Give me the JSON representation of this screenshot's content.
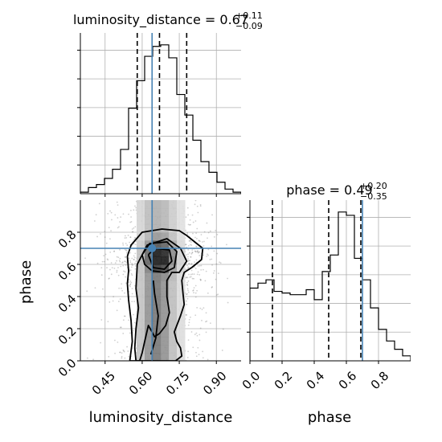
{
  "colors": {
    "truth": "#4682b4",
    "hist": "#000000",
    "grid": "#b0b0b0",
    "quantile": "#000000",
    "scatter": "#777777",
    "density_dark": "#000000"
  },
  "chart_data": [
    {
      "type": "histogram",
      "panel": "top-left",
      "parameter": "luminosity_distance",
      "title": {
        "main": "luminosity_distance = 0.67",
        "sup": "+0.11",
        "sub": "−0.09"
      },
      "xlim": [
        0.35,
        1.0
      ],
      "bin_edges": [
        0.35,
        0.3825,
        0.415,
        0.4475,
        0.48,
        0.5125,
        0.545,
        0.5775,
        0.61,
        0.6425,
        0.675,
        0.7075,
        0.74,
        0.7725,
        0.805,
        0.8375,
        0.87,
        0.9025,
        0.935,
        0.9675,
        1.0
      ],
      "counts": [
        2,
        8,
        12,
        20,
        32,
        58,
        112,
        148,
        180,
        193,
        195,
        178,
        130,
        103,
        70,
        42,
        28,
        15,
        6,
        2
      ],
      "quantiles": [
        0.58,
        0.67,
        0.78
      ],
      "truth": 0.64,
      "grid": true
    },
    {
      "type": "scatter+contour",
      "panel": "bottom-left",
      "xlabel": "luminosity_distance",
      "ylabel": "phase",
      "xlim": [
        0.35,
        1.0
      ],
      "ylim": [
        0.0,
        1.0
      ],
      "xticks": [
        "0.45",
        "0.60",
        "0.75",
        "0.90"
      ],
      "xtick_values": [
        0.45,
        0.6,
        0.75,
        0.9
      ],
      "yticks": [
        "0.0",
        "0.2",
        "0.4",
        "0.6",
        "0.8"
      ],
      "ytick_values": [
        0.0,
        0.2,
        0.4,
        0.6,
        0.8
      ],
      "truth": {
        "x": 0.64,
        "y": 0.7
      },
      "contours": [
        {
          "level": "outer",
          "x": [
            0.55,
            0.56,
            0.555,
            0.545,
            0.54,
            0.545,
            0.54,
            0.555,
            0.6,
            0.68,
            0.75,
            0.78,
            0.845,
            0.84,
            0.8,
            0.77,
            0.76,
            0.765,
            0.77,
            0.755,
            0.74,
            0.73,
            0.74,
            0.755,
            0.76,
            0.735,
            0.705,
            0.66,
            0.55
          ],
          "y": [
            0.0,
            0.12,
            0.25,
            0.38,
            0.48,
            0.56,
            0.65,
            0.72,
            0.8,
            0.82,
            0.81,
            0.78,
            0.7,
            0.63,
            0.58,
            0.55,
            0.5,
            0.42,
            0.35,
            0.28,
            0.22,
            0.18,
            0.12,
            0.08,
            0.03,
            0.0,
            0.0,
            0.0,
            0.0
          ]
        },
        {
          "level": "mid",
          "x": [
            0.575,
            0.57,
            0.575,
            0.585,
            0.575,
            0.58,
            0.62,
            0.7,
            0.755,
            0.78,
            0.75,
            0.72,
            0.7,
            0.7,
            0.71,
            0.695,
            0.67,
            0.65,
            0.64,
            0.625,
            0.61,
            0.6,
            0.59,
            0.575
          ],
          "y": [
            0.0,
            0.08,
            0.2,
            0.33,
            0.45,
            0.6,
            0.72,
            0.76,
            0.7,
            0.62,
            0.55,
            0.55,
            0.5,
            0.4,
            0.3,
            0.22,
            0.17,
            0.15,
            0.18,
            0.22,
            0.12,
            0.05,
            0.0,
            0.0
          ]
        },
        {
          "level": "inner",
          "x": [
            0.6,
            0.63,
            0.7,
            0.74,
            0.73,
            0.69,
            0.64,
            0.61,
            0.6
          ],
          "y": [
            0.66,
            0.73,
            0.74,
            0.68,
            0.58,
            0.55,
            0.56,
            0.6,
            0.66
          ]
        },
        {
          "level": "core",
          "x": [
            0.625,
            0.65,
            0.71,
            0.72,
            0.69,
            0.645,
            0.625
          ],
          "y": [
            0.66,
            0.7,
            0.69,
            0.62,
            0.57,
            0.58,
            0.66
          ]
        },
        {
          "level": "ridge",
          "x": [
            0.635,
            0.655,
            0.665,
            0.65,
            0.645
          ],
          "y": [
            0.04,
            0.14,
            0.28,
            0.42,
            0.5
          ]
        }
      ]
    },
    {
      "type": "histogram",
      "panel": "bottom-right",
      "parameter": "phase",
      "title": {
        "main": "phase = 0.49",
        "sup": "+0.20",
        "sub": "−0.35"
      },
      "xlabel": "phase",
      "xlim": [
        0.0,
        1.0
      ],
      "xticks": [
        "0.0",
        "0.2",
        "0.4",
        "0.6",
        "0.8"
      ],
      "xtick_values": [
        0.0,
        0.2,
        0.4,
        0.6,
        0.8
      ],
      "bin_edges": [
        0.0,
        0.05,
        0.1,
        0.15,
        0.2,
        0.25,
        0.3,
        0.35,
        0.4,
        0.45,
        0.5,
        0.55,
        0.6,
        0.65,
        0.7,
        0.75,
        0.8,
        0.85,
        0.9,
        0.95,
        1.0
      ],
      "counts": [
        88,
        94,
        98,
        84,
        82,
        80,
        80,
        86,
        74,
        108,
        128,
        180,
        176,
        124,
        98,
        64,
        38,
        24,
        14,
        6
      ],
      "quantiles": [
        0.14,
        0.49,
        0.69
      ],
      "truth": 0.7,
      "grid": true
    }
  ]
}
